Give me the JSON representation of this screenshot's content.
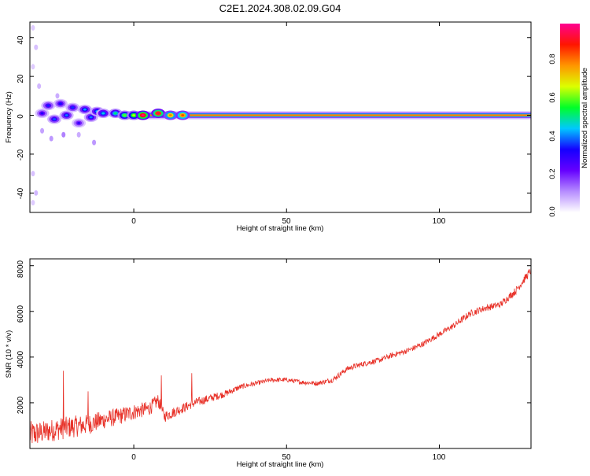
{
  "title": "C2E1.2024.308.02.09.G04",
  "chart_data": [
    {
      "type": "heatmap",
      "xlabel": "Height of straight line (km)",
      "ylabel": "Frequency (Hz)",
      "xlim": [
        -34,
        130
      ],
      "ylim": [
        -50,
        48
      ],
      "x_ticks": [
        "0",
        "50",
        "100"
      ],
      "y_ticks": [
        "40",
        "20",
        "0",
        "-20",
        "-40"
      ],
      "colorbar": {
        "label": "Normalized spectral amplitude",
        "range": [
          0,
          1
        ],
        "ticks": [
          "0.0",
          "0.2",
          "0.4",
          "0.6",
          "0.8"
        ],
        "colors": [
          "#ffffff",
          "#b68cff",
          "#6600ff",
          "#1500ff",
          "#00c8ff",
          "#00ff28",
          "#dcff00",
          "#ff9600",
          "#ff1500",
          "#ff0090"
        ]
      },
      "clusters": [
        {
          "x": -30,
          "f": 1,
          "v": 0.22
        },
        {
          "x": -28,
          "f": 5,
          "v": 0.25
        },
        {
          "x": -26,
          "f": -2,
          "v": 0.28
        },
        {
          "x": -24,
          "f": 6,
          "v": 0.24
        },
        {
          "x": -22,
          "f": 0,
          "v": 0.3
        },
        {
          "x": -20,
          "f": 4,
          "v": 0.26
        },
        {
          "x": -18,
          "f": -4,
          "v": 0.2
        },
        {
          "x": -16,
          "f": 3,
          "v": 0.32
        },
        {
          "x": -14,
          "f": -1,
          "v": 0.3
        },
        {
          "x": -12,
          "f": 2,
          "v": 0.34
        },
        {
          "x": -10,
          "f": 1,
          "v": 0.36
        },
        {
          "x": -6,
          "f": 1,
          "v": 0.42
        },
        {
          "x": -3,
          "f": 0,
          "v": 0.5
        },
        {
          "x": 0,
          "f": 0,
          "v": 0.55
        },
        {
          "x": 3,
          "f": 0,
          "v": 0.9
        },
        {
          "x": 8,
          "f": 1,
          "v": 0.85
        },
        {
          "x": 12,
          "f": 0,
          "v": 0.7
        },
        {
          "x": 16,
          "f": 0,
          "v": 0.75
        }
      ],
      "scatter": [
        {
          "x": -33,
          "f": 45,
          "v": 0.05
        },
        {
          "x": -32,
          "f": 35,
          "v": 0.06
        },
        {
          "x": -33,
          "f": 25,
          "v": 0.05
        },
        {
          "x": -31,
          "f": 15,
          "v": 0.07
        },
        {
          "x": -33,
          "f": -30,
          "v": 0.06
        },
        {
          "x": -32,
          "f": -40,
          "v": 0.07
        },
        {
          "x": -33,
          "f": -45,
          "v": 0.05
        },
        {
          "x": -27,
          "f": -12,
          "v": 0.1
        },
        {
          "x": -23,
          "f": -10,
          "v": 0.12
        },
        {
          "x": -18,
          "f": -10,
          "v": 0.08
        },
        {
          "x": -13,
          "f": -14,
          "v": 0.1
        },
        {
          "x": -30,
          "f": -8,
          "v": 0.09
        },
        {
          "x": -25,
          "f": 10,
          "v": 0.08
        }
      ]
    },
    {
      "type": "line",
      "xlabel": "Height of straight line (km)",
      "ylabel": "SNR (10 * v/v)",
      "xlim": [
        -34,
        130
      ],
      "ylim": [
        0,
        8300
      ],
      "x_ticks": [
        "0",
        "50",
        "100"
      ],
      "y_ticks": [
        "8000",
        "6000",
        "4000",
        "2000"
      ],
      "color": "#e8332a",
      "x": [
        -34,
        -30,
        -25,
        -20,
        -15,
        -10,
        -5,
        0,
        5,
        8,
        10,
        15,
        20,
        25,
        30,
        35,
        40,
        45,
        50,
        55,
        60,
        65,
        70,
        75,
        80,
        85,
        90,
        95,
        100,
        105,
        110,
        115,
        120,
        125,
        130
      ],
      "y": [
        600,
        700,
        850,
        950,
        1050,
        1250,
        1400,
        1600,
        1750,
        2100,
        1400,
        1700,
        2000,
        2200,
        2400,
        2700,
        2850,
        3000,
        3000,
        2900,
        2850,
        3000,
        3500,
        3700,
        3850,
        4100,
        4300,
        4600,
        5000,
        5400,
        5900,
        6150,
        6300,
        6900,
        7800
      ],
      "noise": [
        600,
        500,
        500,
        480,
        450,
        400,
        380,
        350,
        320,
        300,
        250,
        220,
        200,
        180,
        150,
        120,
        100,
        100,
        100,
        100,
        100,
        120,
        120,
        120,
        120,
        120,
        120,
        130,
        130,
        140,
        150,
        150,
        150,
        170,
        180
      ],
      "spikes": [
        {
          "x": -23,
          "y": 3400
        },
        {
          "x": -15,
          "y": 2500
        },
        {
          "x": 9,
          "y": 3200
        },
        {
          "x": 19,
          "y": 3300
        }
      ]
    }
  ]
}
